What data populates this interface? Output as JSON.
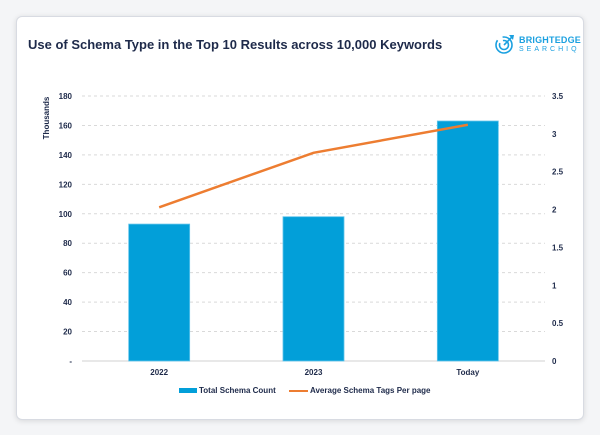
{
  "title": "Use of Schema Type in the Top 10 Results across 10,000 Keywords",
  "logo": {
    "line1": "BRIGHTEDGE",
    "line2": "SEARCHIQ"
  },
  "chart_data": {
    "type": "bar+line",
    "title": "Use of Schema Type in the Top 10 Results across 10,000 Keywords",
    "categories": [
      "2022",
      "2023",
      "Today"
    ],
    "ylabel": "Thousands",
    "ylim": [
      0,
      180
    ],
    "y_ticks": [
      "-",
      "20",
      "40",
      "60",
      "80",
      "100",
      "120",
      "140",
      "160",
      "180"
    ],
    "y2lim": [
      0,
      3.5
    ],
    "y2_ticks": [
      "0",
      "0.5",
      "1",
      "1.5",
      "2",
      "2.5",
      "3",
      "3.5"
    ],
    "grid": true,
    "legend_position": "bottom",
    "series": [
      {
        "name": "Total Schema Count",
        "type": "bar",
        "axis": "left",
        "color": "#029fd9",
        "values": [
          93,
          98,
          163
        ]
      },
      {
        "name": "Average Schema Tags Per page",
        "type": "line",
        "axis": "right",
        "color": "#ed7d31",
        "values": [
          2.03,
          2.75,
          3.12
        ]
      }
    ]
  }
}
